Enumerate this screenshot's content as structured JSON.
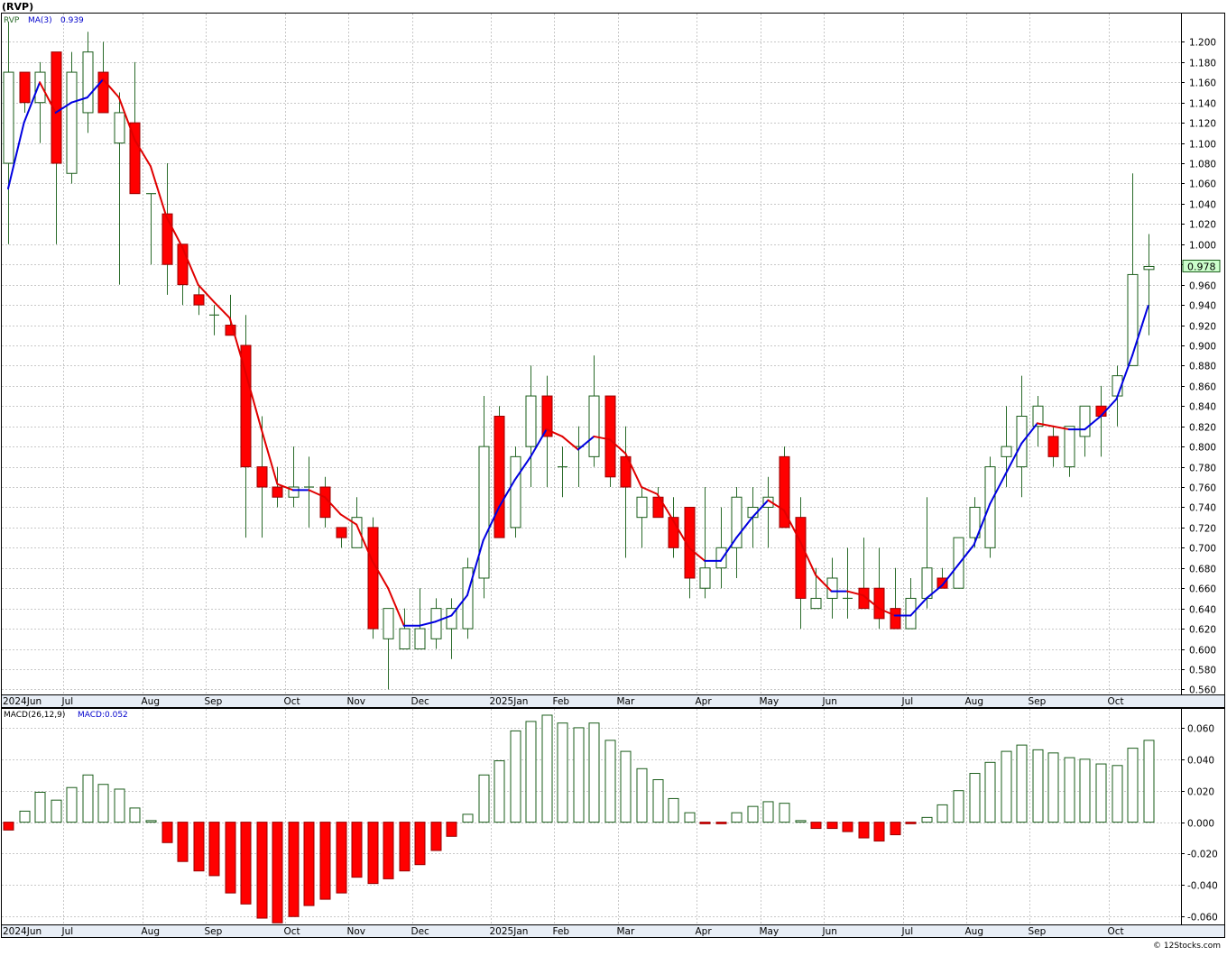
{
  "header": {
    "symbol_label": "(RVP)"
  },
  "footer": {
    "copyright": "© 12Stocks.com"
  },
  "chart_data": [
    {
      "type": "candlestick",
      "panel": "price",
      "legend": {
        "symbol": "RVP",
        "ma_label": "MA(3)",
        "ma_value": "0.939"
      },
      "last_price_label": "0.978",
      "ylim": [
        0.555,
        1.228
      ],
      "y_ticks": [
        0.56,
        0.58,
        0.6,
        0.62,
        0.64,
        0.66,
        0.68,
        0.7,
        0.72,
        0.74,
        0.76,
        0.78,
        0.8,
        0.82,
        0.84,
        0.86,
        0.88,
        0.9,
        0.92,
        0.94,
        0.96,
        0.98,
        1.0,
        1.02,
        1.04,
        1.06,
        1.08,
        1.1,
        1.12,
        1.14,
        1.16,
        1.18,
        1.2
      ],
      "x_ticks": [
        {
          "label": "2024Jun",
          "week": 0
        },
        {
          "label": "Jul",
          "week": 4
        },
        {
          "label": "Aug",
          "week": 9
        },
        {
          "label": "Sep",
          "week": 13
        },
        {
          "label": "Oct",
          "week": 18
        },
        {
          "label": "Nov",
          "week": 22
        },
        {
          "label": "Dec",
          "week": 26
        },
        {
          "label": "2025Jan",
          "week": 31
        },
        {
          "label": "Feb",
          "week": 35
        },
        {
          "label": "Mar",
          "week": 39
        },
        {
          "label": "Apr",
          "week": 44
        },
        {
          "label": "May",
          "week": 48
        },
        {
          "label": "Jun",
          "week": 52
        },
        {
          "label": "Jul",
          "week": 57
        },
        {
          "label": "Aug",
          "week": 61
        },
        {
          "label": "Sep",
          "week": 65
        },
        {
          "label": "Oct",
          "week": 70
        }
      ],
      "candles": [
        {
          "o": 1.08,
          "h": 1.22,
          "l": 1.0,
          "c": 1.17
        },
        {
          "o": 1.17,
          "h": 1.17,
          "l": 1.13,
          "c": 1.14
        },
        {
          "o": 1.14,
          "h": 1.18,
          "l": 1.1,
          "c": 1.17
        },
        {
          "o": 1.19,
          "h": 1.19,
          "l": 1.0,
          "c": 1.08
        },
        {
          "o": 1.07,
          "h": 1.19,
          "l": 1.06,
          "c": 1.17
        },
        {
          "o": 1.13,
          "h": 1.21,
          "l": 1.11,
          "c": 1.19
        },
        {
          "o": 1.17,
          "h": 1.2,
          "l": 1.13,
          "c": 1.13
        },
        {
          "o": 1.1,
          "h": 1.15,
          "l": 0.96,
          "c": 1.13
        },
        {
          "o": 1.12,
          "h": 1.18,
          "l": 1.05,
          "c": 1.05
        },
        {
          "o": 1.05,
          "h": 1.05,
          "l": 0.98,
          "c": 1.05
        },
        {
          "o": 1.03,
          "h": 1.08,
          "l": 0.95,
          "c": 0.98
        },
        {
          "o": 1.0,
          "h": 1.0,
          "l": 0.94,
          "c": 0.96
        },
        {
          "o": 0.95,
          "h": 0.96,
          "l": 0.93,
          "c": 0.94
        },
        {
          "o": 0.93,
          "h": 0.94,
          "l": 0.91,
          "c": 0.93
        },
        {
          "o": 0.92,
          "h": 0.95,
          "l": 0.91,
          "c": 0.91
        },
        {
          "o": 0.9,
          "h": 0.93,
          "l": 0.71,
          "c": 0.78
        },
        {
          "o": 0.78,
          "h": 0.83,
          "l": 0.71,
          "c": 0.76
        },
        {
          "o": 0.76,
          "h": 0.78,
          "l": 0.74,
          "c": 0.75
        },
        {
          "o": 0.75,
          "h": 0.8,
          "l": 0.74,
          "c": 0.76
        },
        {
          "o": 0.76,
          "h": 0.79,
          "l": 0.72,
          "c": 0.76
        },
        {
          "o": 0.76,
          "h": 0.77,
          "l": 0.72,
          "c": 0.73
        },
        {
          "o": 0.72,
          "h": 0.72,
          "l": 0.7,
          "c": 0.71
        },
        {
          "o": 0.7,
          "h": 0.75,
          "l": 0.7,
          "c": 0.73
        },
        {
          "o": 0.72,
          "h": 0.73,
          "l": 0.61,
          "c": 0.62
        },
        {
          "o": 0.61,
          "h": 0.64,
          "l": 0.56,
          "c": 0.64
        },
        {
          "o": 0.6,
          "h": 0.64,
          "l": 0.6,
          "c": 0.62
        },
        {
          "o": 0.6,
          "h": 0.66,
          "l": 0.6,
          "c": 0.62
        },
        {
          "o": 0.61,
          "h": 0.65,
          "l": 0.6,
          "c": 0.64
        },
        {
          "o": 0.62,
          "h": 0.65,
          "l": 0.59,
          "c": 0.64
        },
        {
          "o": 0.62,
          "h": 0.69,
          "l": 0.61,
          "c": 0.68
        },
        {
          "o": 0.67,
          "h": 0.85,
          "l": 0.65,
          "c": 0.8
        },
        {
          "o": 0.83,
          "h": 0.84,
          "l": 0.71,
          "c": 0.71
        },
        {
          "o": 0.72,
          "h": 0.8,
          "l": 0.71,
          "c": 0.79
        },
        {
          "o": 0.8,
          "h": 0.88,
          "l": 0.76,
          "c": 0.85
        },
        {
          "o": 0.85,
          "h": 0.87,
          "l": 0.76,
          "c": 0.81
        },
        {
          "o": 0.78,
          "h": 0.8,
          "l": 0.75,
          "c": 0.78
        },
        {
          "o": 0.8,
          "h": 0.82,
          "l": 0.76,
          "c": 0.8
        },
        {
          "o": 0.79,
          "h": 0.89,
          "l": 0.78,
          "c": 0.85
        },
        {
          "o": 0.85,
          "h": 0.85,
          "l": 0.76,
          "c": 0.77
        },
        {
          "o": 0.79,
          "h": 0.82,
          "l": 0.69,
          "c": 0.76
        },
        {
          "o": 0.73,
          "h": 0.76,
          "l": 0.7,
          "c": 0.75
        },
        {
          "o": 0.75,
          "h": 0.76,
          "l": 0.73,
          "c": 0.73
        },
        {
          "o": 0.73,
          "h": 0.75,
          "l": 0.69,
          "c": 0.7
        },
        {
          "o": 0.74,
          "h": 0.74,
          "l": 0.65,
          "c": 0.67
        },
        {
          "o": 0.66,
          "h": 0.76,
          "l": 0.65,
          "c": 0.68
        },
        {
          "o": 0.68,
          "h": 0.74,
          "l": 0.66,
          "c": 0.7
        },
        {
          "o": 0.7,
          "h": 0.76,
          "l": 0.67,
          "c": 0.75
        },
        {
          "o": 0.73,
          "h": 0.76,
          "l": 0.7,
          "c": 0.74
        },
        {
          "o": 0.74,
          "h": 0.77,
          "l": 0.7,
          "c": 0.75
        },
        {
          "o": 0.79,
          "h": 0.8,
          "l": 0.72,
          "c": 0.72
        },
        {
          "o": 0.73,
          "h": 0.75,
          "l": 0.62,
          "c": 0.65
        },
        {
          "o": 0.64,
          "h": 0.68,
          "l": 0.64,
          "c": 0.65
        },
        {
          "o": 0.65,
          "h": 0.69,
          "l": 0.63,
          "c": 0.67
        },
        {
          "o": 0.65,
          "h": 0.7,
          "l": 0.63,
          "c": 0.65
        },
        {
          "o": 0.66,
          "h": 0.71,
          "l": 0.64,
          "c": 0.64
        },
        {
          "o": 0.66,
          "h": 0.7,
          "l": 0.62,
          "c": 0.63
        },
        {
          "o": 0.64,
          "h": 0.68,
          "l": 0.62,
          "c": 0.62
        },
        {
          "o": 0.62,
          "h": 0.67,
          "l": 0.62,
          "c": 0.65
        },
        {
          "o": 0.65,
          "h": 0.75,
          "l": 0.64,
          "c": 0.68
        },
        {
          "o": 0.67,
          "h": 0.68,
          "l": 0.66,
          "c": 0.66
        },
        {
          "o": 0.66,
          "h": 0.71,
          "l": 0.66,
          "c": 0.71
        },
        {
          "o": 0.71,
          "h": 0.75,
          "l": 0.7,
          "c": 0.74
        },
        {
          "o": 0.7,
          "h": 0.79,
          "l": 0.69,
          "c": 0.78
        },
        {
          "o": 0.79,
          "h": 0.84,
          "l": 0.76,
          "c": 0.8
        },
        {
          "o": 0.78,
          "h": 0.87,
          "l": 0.75,
          "c": 0.83
        },
        {
          "o": 0.82,
          "h": 0.85,
          "l": 0.8,
          "c": 0.84
        },
        {
          "o": 0.81,
          "h": 0.82,
          "l": 0.78,
          "c": 0.79
        },
        {
          "o": 0.78,
          "h": 0.82,
          "l": 0.77,
          "c": 0.82
        },
        {
          "o": 0.81,
          "h": 0.84,
          "l": 0.79,
          "c": 0.84
        },
        {
          "o": 0.84,
          "h": 0.86,
          "l": 0.79,
          "c": 0.83
        },
        {
          "o": 0.85,
          "h": 0.88,
          "l": 0.82,
          "c": 0.87
        },
        {
          "o": 0.88,
          "h": 1.07,
          "l": 0.88,
          "c": 0.97
        },
        {
          "o": 0.975,
          "h": 1.01,
          "l": 0.91,
          "c": 0.978
        }
      ],
      "ma3": [
        1.055,
        1.12,
        1.16,
        1.13,
        1.14,
        1.145,
        1.163,
        1.145,
        1.103,
        1.077,
        1.027,
        0.997,
        0.96,
        0.943,
        0.927,
        0.873,
        0.817,
        0.763,
        0.757,
        0.757,
        0.75,
        0.733,
        0.723,
        0.687,
        0.66,
        0.623,
        0.623,
        0.627,
        0.633,
        0.653,
        0.707,
        0.74,
        0.767,
        0.79,
        0.817,
        0.81,
        0.797,
        0.81,
        0.807,
        0.793,
        0.76,
        0.753,
        0.727,
        0.7,
        0.687,
        0.687,
        0.71,
        0.73,
        0.747,
        0.737,
        0.707,
        0.673,
        0.657,
        0.657,
        0.653,
        0.64,
        0.633,
        0.633,
        0.65,
        0.663,
        0.683,
        0.703,
        0.743,
        0.773,
        0.803,
        0.823,
        0.82,
        0.817,
        0.817,
        0.83,
        0.847,
        0.89,
        0.939
      ],
      "ma_colors": {
        "up": "#0000e0",
        "down": "#e00000"
      },
      "colors": {
        "up_body": "#ffffff",
        "up_border": "#1a5c1a",
        "down_body": "#ff0000",
        "down_border": "#990000",
        "wick": "#2a6b2a"
      }
    },
    {
      "type": "bar",
      "panel": "macd",
      "legend": {
        "indicator": "MACD(26,12,9)",
        "value_label": "MACD:0.052"
      },
      "ylim": [
        -0.065,
        0.072
      ],
      "y_ticks": [
        -0.06,
        -0.04,
        -0.02,
        0.0,
        0.02,
        0.04,
        0.06
      ],
      "values": [
        -0.005,
        0.007,
        0.019,
        0.014,
        0.022,
        0.03,
        0.024,
        0.021,
        0.009,
        0.001,
        -0.013,
        -0.025,
        -0.031,
        -0.034,
        -0.045,
        -0.052,
        -0.061,
        -0.064,
        -0.06,
        -0.053,
        -0.049,
        -0.045,
        -0.035,
        -0.039,
        -0.036,
        -0.031,
        -0.027,
        -0.018,
        -0.009,
        0.005,
        0.03,
        0.039,
        0.058,
        0.064,
        0.068,
        0.063,
        0.06,
        0.063,
        0.052,
        0.045,
        0.034,
        0.027,
        0.015,
        0.006,
        -0.001,
        -0.001,
        0.006,
        0.01,
        0.013,
        0.012,
        0.001,
        -0.004,
        -0.004,
        -0.006,
        -0.01,
        -0.012,
        -0.008,
        -0.001,
        0.003,
        0.011,
        0.02,
        0.031,
        0.038,
        0.045,
        0.049,
        0.046,
        0.044,
        0.041,
        0.04,
        0.037,
        0.036,
        0.047,
        0.052
      ],
      "colors": {
        "positive_fill": "#ffffff",
        "positive_border": "#1a5c1a",
        "negative_fill": "#ff0000",
        "negative_border": "#990000"
      }
    }
  ]
}
